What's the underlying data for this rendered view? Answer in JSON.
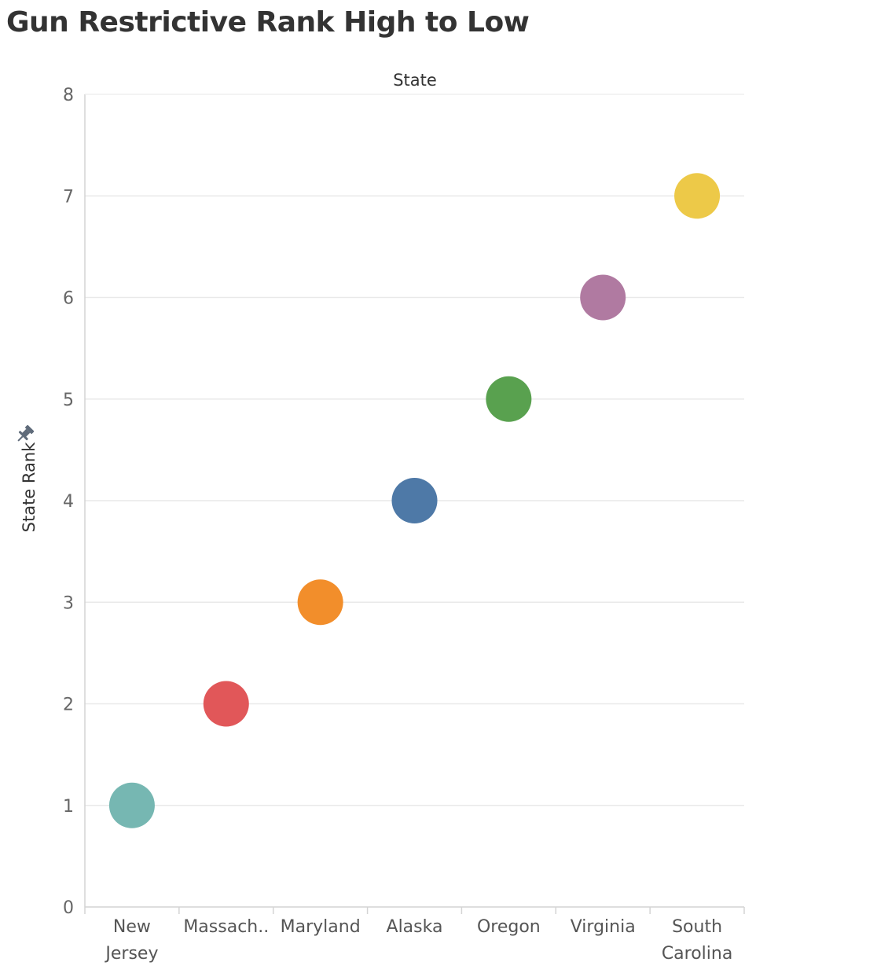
{
  "title": "Gun Restrictive Rank High to Low",
  "chart_data": {
    "type": "scatter",
    "title": "Gun Restrictive Rank High to Low",
    "xlabel": "State",
    "ylabel": "State Rank",
    "categories": [
      "New Jersey",
      "Massach..",
      "Maryland",
      "Alaska",
      "Oregon",
      "Virginia",
      "South Carolina"
    ],
    "category_label_lines": [
      [
        "New",
        "Jersey"
      ],
      [
        "Massach.."
      ],
      [
        "Maryland"
      ],
      [
        "Alaska"
      ],
      [
        "Oregon"
      ],
      [
        "Virginia"
      ],
      [
        "South",
        "Carolina"
      ]
    ],
    "values": [
      1,
      2,
      3,
      4,
      5,
      6,
      7
    ],
    "point_colors": [
      "#76B7B2",
      "#E15759",
      "#F28E2B",
      "#4E79A7",
      "#59A14F",
      "#B07AA1",
      "#EDC948"
    ],
    "ylim": [
      0,
      8
    ],
    "yticks": [
      0,
      1,
      2,
      3,
      4,
      5,
      6,
      7,
      8
    ],
    "grid": true,
    "legend": "none"
  },
  "icons": {
    "ylabel_icon": "pin-icon"
  },
  "colors": {
    "gridline": "#e9e9e9",
    "axis_line": "#d4d4d4",
    "pin_icon": "#5f6b7a"
  }
}
